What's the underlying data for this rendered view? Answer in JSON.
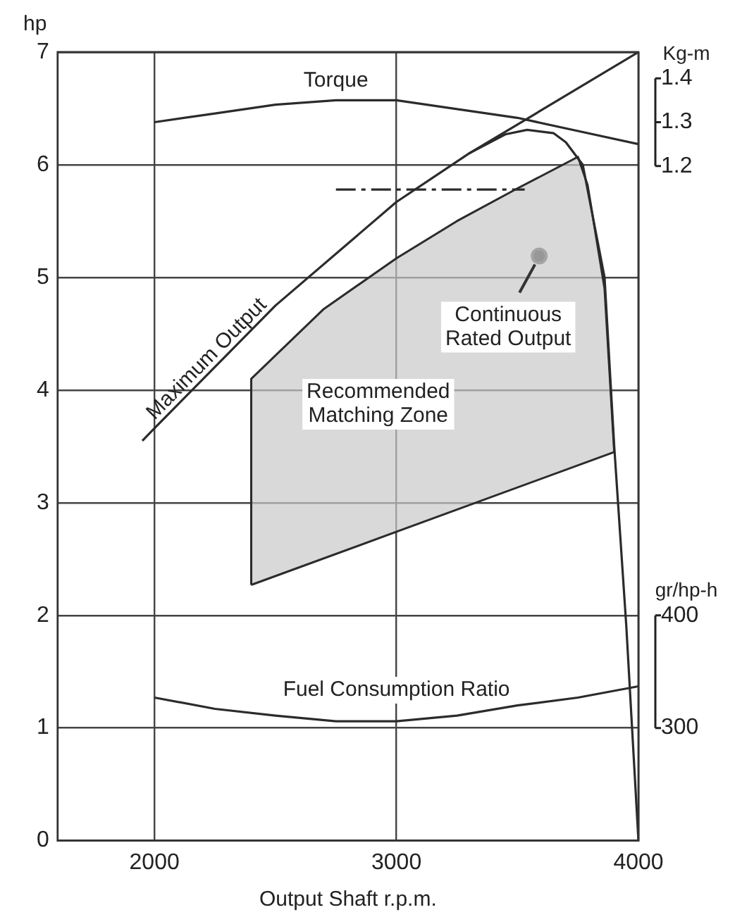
{
  "chart_data": {
    "type": "line",
    "xlabel": "Output Shaft r.p.m.",
    "ylabel": "hp",
    "y2label": "Kg-m",
    "y3label": "gr/hp-h",
    "xlim": [
      1600,
      4000
    ],
    "xticks": [
      2000,
      3000,
      4000
    ],
    "ylim": [
      0,
      7
    ],
    "yticks": [
      0,
      1,
      2,
      3,
      4,
      5,
      6,
      7
    ],
    "y2lim": [
      -0.34,
      1.46
    ],
    "y2ticks": [
      1.2,
      1.3,
      1.4
    ],
    "y3lim": [
      200,
      900
    ],
    "y3ticks": [
      300,
      400
    ],
    "grid": true,
    "legend": false,
    "annotations": [
      {
        "text": "Continuous Rated Output",
        "x": 3590,
        "y": 5.19
      }
    ],
    "series": [
      {
        "name": "Torque",
        "type": "line",
        "axis": "y2",
        "color": "#2b2b2b",
        "x": [
          2000,
          2250,
          2500,
          2750,
          3000,
          3250,
          3500,
          3750,
          4000
        ],
        "values": [
          1.3,
          1.32,
          1.34,
          1.35,
          1.35,
          1.33,
          1.31,
          1.28,
          1.25
        ]
      },
      {
        "name": "Maximum Output",
        "type": "line",
        "color": "#2b2b2b",
        "x": [
          1950,
          2000,
          2500,
          3000,
          3300,
          3450,
          3540,
          3650,
          3700,
          3770,
          3860,
          3900,
          3950,
          4000
        ],
        "values": [
          3.55,
          3.66,
          4.75,
          5.67,
          6.1,
          6.27,
          6.31,
          6.28,
          6.2,
          6.0,
          5.0,
          3.5,
          1.9,
          0
        ]
      },
      {
        "type": "line",
        "color": "#2b2b2b",
        "x": [
          3300,
          4000
        ],
        "values": [
          6.1,
          7.0
        ]
      },
      {
        "type": "line",
        "color": "#2b2b2b",
        "line_style": "dashed",
        "x": [
          2750,
          3530
        ],
        "values": [
          5.78,
          5.78
        ]
      },
      {
        "name": "Recommended Matching Zone",
        "type": "area",
        "color": "#c8c8c8",
        "x": [
          2400,
          2400,
          2700,
          3000,
          3250,
          3500,
          3750,
          3790,
          3860,
          3900,
          2400
        ],
        "values": [
          2.27,
          4.1,
          4.72,
          5.17,
          5.5,
          5.79,
          6.07,
          5.82,
          4.9,
          3.45,
          2.27
        ]
      },
      {
        "type": "scatter",
        "marker": "circle",
        "color": "#2b2b2b",
        "x": [
          3590
        ],
        "values": [
          5.19
        ]
      },
      {
        "name": "Fuel Consumption Ratio",
        "type": "line",
        "axis": "y3",
        "color": "#2b2b2b",
        "x": [
          2000,
          2250,
          2500,
          2750,
          3000,
          3250,
          3500,
          3750,
          4000
        ],
        "values": [
          327,
          317,
          311,
          306,
          306,
          311,
          320,
          327,
          337
        ]
      }
    ]
  }
}
